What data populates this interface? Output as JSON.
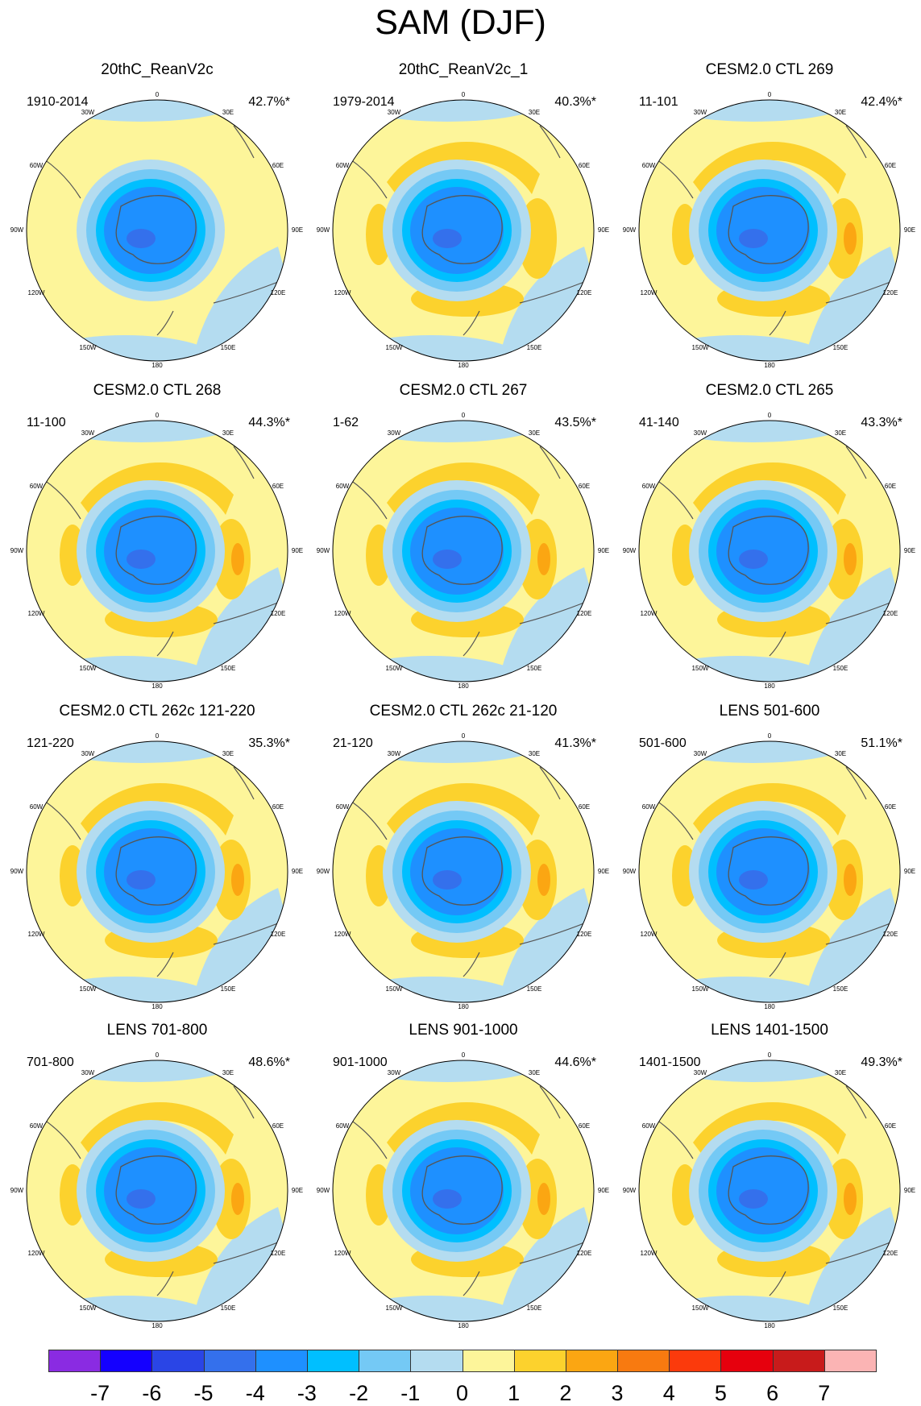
{
  "title": "SAM (DJF)",
  "lon_labels": {
    "n": "0",
    "ne": "30E",
    "e1": "60E",
    "e": "90E",
    "e2": "120E",
    "se": "150E",
    "s": "180",
    "sw": "150W",
    "w2": "120W",
    "w": "90W",
    "w1": "60W",
    "nw": "30W"
  },
  "panels": [
    {
      "title": "20thC_ReanV2c",
      "period": "1910-2014",
      "pct": "42.7%*",
      "ring": 0
    },
    {
      "title": "20thC_ReanV2c_1",
      "period": "1979-2014",
      "pct": "40.3%*",
      "ring": 1
    },
    {
      "title": "CESM2.0 CTL 269",
      "period": "11-101",
      "pct": "42.4%*",
      "ring": 2
    },
    {
      "title": "CESM2.0 CTL 268",
      "period": "11-100",
      "pct": "44.3%*",
      "ring": 2
    },
    {
      "title": "CESM2.0 CTL 267",
      "period": "1-62",
      "pct": "43.5%*",
      "ring": 2
    },
    {
      "title": "CESM2.0 CTL 265",
      "period": "41-140",
      "pct": "43.3%*",
      "ring": 2
    },
    {
      "title": "CESM2.0 CTL 262c 121-220",
      "period": "121-220",
      "pct": "35.3%*",
      "ring": 2
    },
    {
      "title": "CESM2.0 CTL 262c 21-120",
      "period": "21-120",
      "pct": "41.3%*",
      "ring": 2
    },
    {
      "title": "LENS 501-600",
      "period": "501-600",
      "pct": "51.1%*",
      "ring": 2
    },
    {
      "title": "LENS 701-800",
      "period": "701-800",
      "pct": "48.6%*",
      "ring": 2
    },
    {
      "title": "LENS 901-1000",
      "period": "901-1000",
      "pct": "44.6%*",
      "ring": 2
    },
    {
      "title": "LENS 1401-1500",
      "period": "1401-1500",
      "pct": "49.3%*",
      "ring": 2
    }
  ],
  "colorbar": {
    "colors": [
      "#8a2be2",
      "#1400ff",
      "#2a45e6",
      "#3470ec",
      "#1e90ff",
      "#00bfff",
      "#74c9f5",
      "#b4dcf0",
      "#fdf59a",
      "#fcd22d",
      "#fba612",
      "#f87a10",
      "#fb3a0c",
      "#e6000d",
      "#c81b1b",
      "#fbb4b4"
    ],
    "ticks": [
      "-7",
      "-6",
      "-5",
      "-4",
      "-3",
      "-2",
      "-1",
      "0",
      "1",
      "2",
      "3",
      "4",
      "5",
      "6",
      "7"
    ]
  },
  "fill_colors": {
    "pos_light": "#fdf59a",
    "pos_mid": "#fcd22d",
    "pos_strong": "#fba612",
    "pos_max": "#f87a10",
    "neg_light": "#b4dcf0",
    "neg_mid": "#74c9f5",
    "neg_2": "#00bfff",
    "neg_3": "#1e90ff",
    "neg_4": "#3470ec",
    "coast": "#555555"
  }
}
